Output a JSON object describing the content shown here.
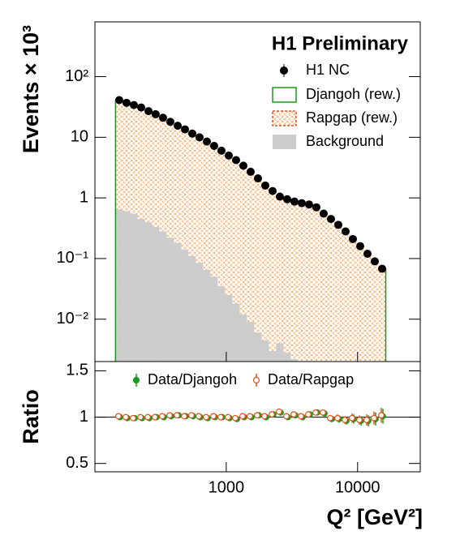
{
  "chart_data": [
    {
      "type": "histogram",
      "title": "H1 Preliminary",
      "ylabel": "Events × 10³",
      "x": [
        153,
        174,
        198,
        225,
        256,
        290,
        330,
        375,
        427,
        485,
        551,
        626,
        712,
        809,
        919,
        1045,
        1188,
        1350,
        1534,
        1744,
        1982,
        2253,
        2560,
        2910,
        3307,
        3758,
        4272,
        4855,
        5518,
        6272,
        7129,
        8102,
        9209,
        10470,
        11900,
        13520,
        15370
      ],
      "xlim": [
        100,
        30000
      ],
      "xscale": "log",
      "ylim": [
        0.002,
        800
      ],
      "yscale": "log",
      "yticks": [
        {
          "value": 0.01,
          "label": "10⁻²"
        },
        {
          "value": 0.1,
          "label": "10⁻¹"
        },
        1,
        10,
        {
          "value": 100,
          "label": "10²"
        }
      ],
      "series": [
        {
          "name": "Rapgap (rew.)",
          "color": "#e8501a",
          "style": "hatched",
          "values": [
            41,
            37,
            34,
            31,
            27,
            24,
            21,
            18,
            15.5,
            13.5,
            11.5,
            10,
            8.5,
            7.2,
            6,
            5,
            4.2,
            3.4,
            2.7,
            2.1,
            1.6,
            1.3,
            1.05,
            0.95,
            0.87,
            0.82,
            0.78,
            0.7,
            0.55,
            0.45,
            0.36,
            0.28,
            0.21,
            0.16,
            0.12,
            0.09,
            0.068
          ]
        },
        {
          "name": "Background",
          "color": "#cccccc",
          "style": "filled",
          "values": [
            0.65,
            0.6,
            0.55,
            0.45,
            0.4,
            0.33,
            0.28,
            0.22,
            0.18,
            0.14,
            0.11,
            0.085,
            0.065,
            0.05,
            0.035,
            0.025,
            0.018,
            0.012,
            0.009,
            0.006,
            0.0045,
            0.003,
            0.004,
            0.0028,
            0.0022,
            0,
            0,
            0,
            0,
            0,
            0,
            0,
            0,
            0,
            0,
            0,
            0
          ]
        },
        {
          "name": "Djangoh (rew.)",
          "color": "#1a9a1a",
          "style": "outline",
          "values": [
            41,
            37,
            34,
            31,
            27,
            24,
            21,
            18,
            15.5,
            13.5,
            11.5,
            10,
            8.5,
            7.2,
            6,
            5,
            4.2,
            3.4,
            2.7,
            2.1,
            1.6,
            1.3,
            1.05,
            0.95,
            0.87,
            0.82,
            0.78,
            0.7,
            0.55,
            0.45,
            0.36,
            0.28,
            0.21,
            0.16,
            0.12,
            0.09,
            0.068
          ]
        },
        {
          "name": "H1 NC",
          "color": "#000000",
          "style": "marker",
          "values": [
            41,
            37,
            34,
            31,
            27,
            24,
            21,
            18,
            15.5,
            13.5,
            11.5,
            10,
            8.5,
            7.2,
            6,
            5,
            4.2,
            3.4,
            2.7,
            2.1,
            1.6,
            1.3,
            1.05,
            0.95,
            0.87,
            0.82,
            0.78,
            0.7,
            0.55,
            0.45,
            0.36,
            0.28,
            0.21,
            0.16,
            0.12,
            0.09,
            0.068
          ]
        }
      ]
    },
    {
      "type": "errorbar",
      "ylabel": "Ratio",
      "xlabel": "Q² [GeV²]",
      "x": [
        153,
        174,
        198,
        225,
        256,
        290,
        330,
        375,
        427,
        485,
        551,
        626,
        712,
        809,
        919,
        1045,
        1188,
        1350,
        1534,
        1744,
        1982,
        2253,
        2560,
        2910,
        3307,
        3758,
        4272,
        4855,
        5518,
        6272,
        7129,
        8102,
        9209,
        10470,
        11900,
        13520,
        15370
      ],
      "xlim": [
        100,
        30000
      ],
      "xscale": "log",
      "xticks": [
        1000,
        10000
      ],
      "ylim": [
        0.41,
        1.6
      ],
      "yticks": [
        0.5,
        1,
        1.5
      ],
      "reference_line": 1,
      "series": [
        {
          "name": "Data/Djangoh",
          "color": "#1a9a1a",
          "marker": "filled",
          "values": [
            1.0,
            0.99,
            0.99,
            0.99,
            0.99,
            1.0,
            1.0,
            1.01,
            1.02,
            1.01,
            1.01,
            1.0,
            0.99,
            1.0,
            1.0,
            0.99,
            0.98,
            1.0,
            1.0,
            1.02,
            1.0,
            1.03,
            1.05,
            1.0,
            1.02,
            1.0,
            1.03,
            1.05,
            1.04,
            0.98,
            0.98,
            0.96,
            0.98,
            0.96,
            0.96,
            0.98,
            1.01
          ],
          "errors": [
            0.01,
            0.01,
            0.01,
            0.01,
            0.01,
            0.01,
            0.01,
            0.01,
            0.01,
            0.01,
            0.01,
            0.01,
            0.01,
            0.01,
            0.01,
            0.01,
            0.01,
            0.01,
            0.01,
            0.01,
            0.01,
            0.015,
            0.015,
            0.015,
            0.02,
            0.02,
            0.02,
            0.025,
            0.03,
            0.03,
            0.04,
            0.04,
            0.05,
            0.05,
            0.06,
            0.07,
            0.08
          ]
        },
        {
          "name": "Data/Rapgap",
          "color": "#e8501a",
          "marker": "open",
          "values": [
            1.01,
            1.0,
            0.99,
            1.0,
            1.0,
            1.0,
            1.01,
            1.02,
            1.02,
            1.01,
            1.02,
            1.01,
            1.0,
            1.01,
            1.0,
            1.0,
            0.99,
            1.01,
            1.01,
            1.02,
            1.01,
            1.03,
            1.06,
            1.01,
            1.03,
            1.01,
            1.03,
            1.05,
            1.05,
            0.99,
            0.99,
            0.97,
            0.99,
            0.97,
            0.97,
            0.99,
            1.02
          ],
          "errors": [
            0.01,
            0.01,
            0.01,
            0.01,
            0.01,
            0.01,
            0.01,
            0.01,
            0.01,
            0.01,
            0.01,
            0.01,
            0.01,
            0.01,
            0.01,
            0.01,
            0.01,
            0.01,
            0.01,
            0.01,
            0.01,
            0.015,
            0.015,
            0.015,
            0.02,
            0.02,
            0.02,
            0.025,
            0.03,
            0.03,
            0.04,
            0.04,
            0.05,
            0.05,
            0.06,
            0.07,
            0.08
          ]
        }
      ]
    }
  ]
}
